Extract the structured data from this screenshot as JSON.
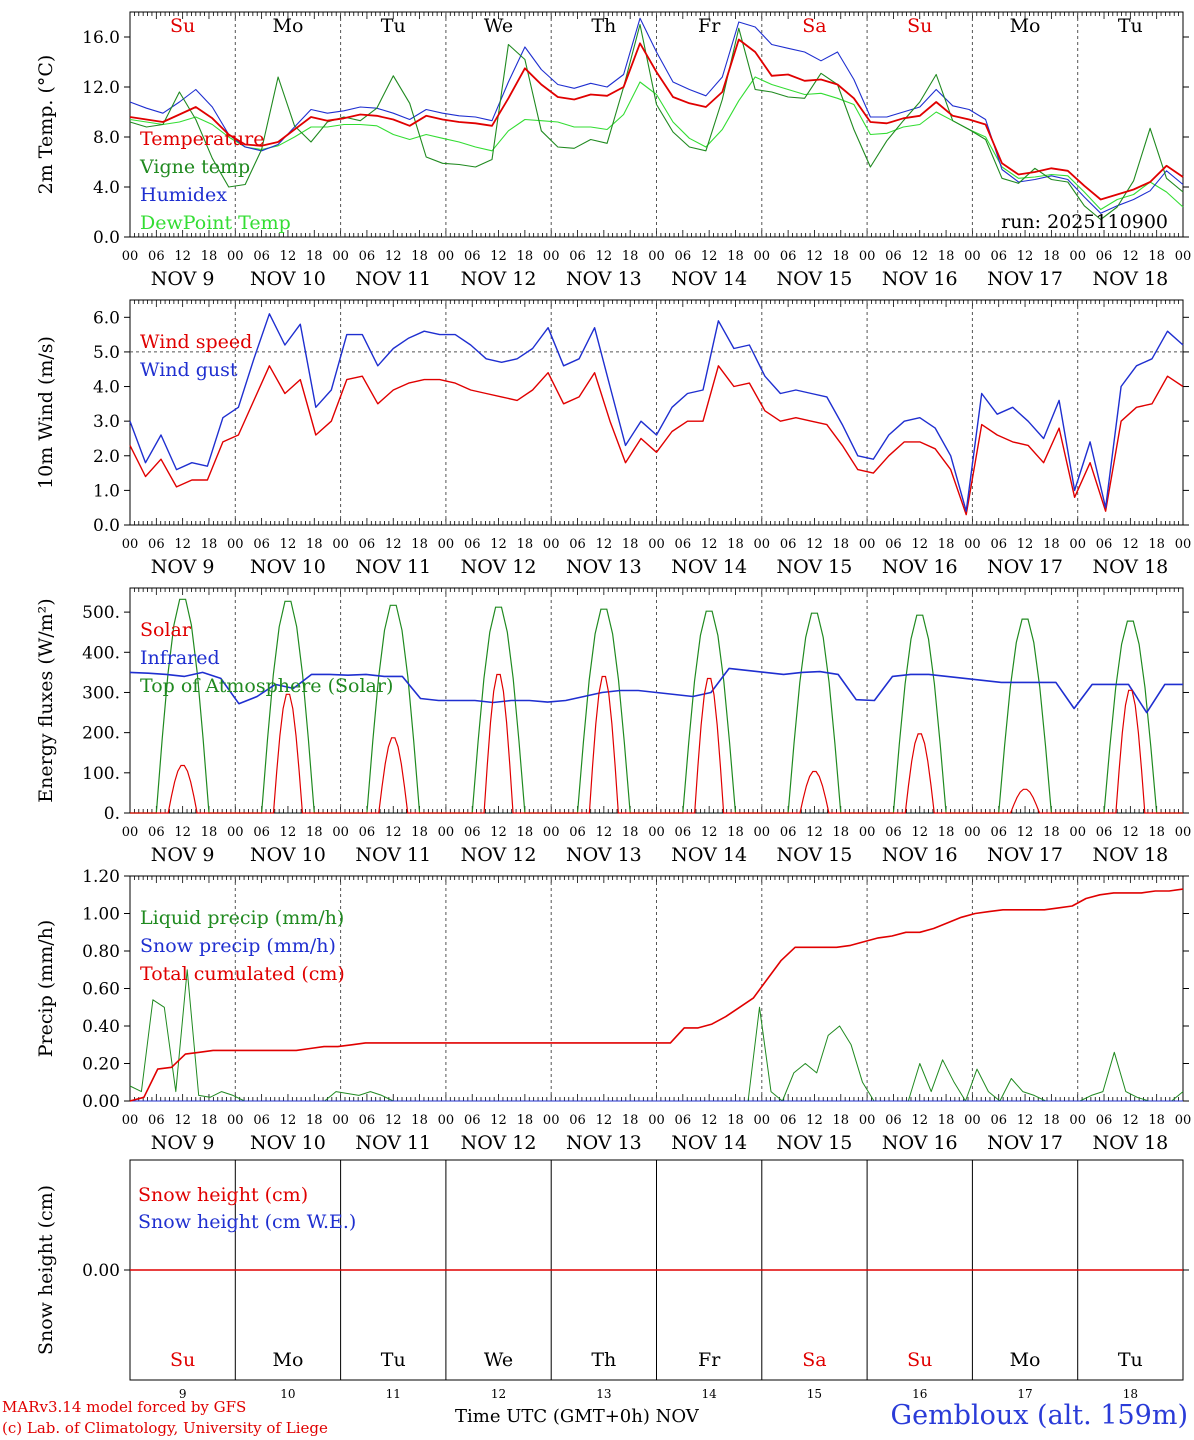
{
  "chart_data": [
    {
      "type": "line",
      "ylabel": "2m Temp. (°C)",
      "ylim": [
        0,
        18
      ],
      "yticks": [
        "0.0",
        "4.0",
        "8.0",
        "12.0",
        "16.0"
      ],
      "annotation": "run: 2025110900",
      "series": [
        {
          "name": "Temperature",
          "color": "#e00000",
          "values": [
            9.6,
            9.4,
            9.2,
            9.8,
            10.4,
            9.5,
            8.2,
            7.4,
            7.3,
            7.6,
            8.6,
            9.6,
            9.3,
            9.5,
            9.8,
            9.7,
            9.4,
            8.9,
            9.7,
            9.4,
            9.2,
            9.1,
            8.9,
            11.1,
            13.5,
            12.2,
            11.2,
            11.0,
            11.4,
            11.3,
            12.0,
            15.5,
            13.2,
            11.2,
            10.7,
            10.4,
            11.6,
            15.8,
            14.8,
            12.9,
            13.0,
            12.5,
            12.6,
            12.2,
            11.1,
            9.2,
            9.1,
            9.5,
            9.7,
            10.8,
            9.7,
            9.4,
            9.0,
            5.9,
            5.0,
            5.2,
            5.5,
            5.3,
            4.1,
            3.0,
            3.4,
            3.8,
            4.4,
            5.7,
            4.8
          ]
        },
        {
          "name": "Vigne temp",
          "color": "#208a20",
          "values": [
            9.2,
            8.8,
            9.0,
            11.6,
            9.4,
            6.3,
            4.0,
            4.2,
            7.0,
            12.8,
            8.9,
            7.6,
            9.2,
            9.6,
            9.3,
            10.3,
            12.9,
            10.7,
            6.4,
            5.9,
            5.8,
            5.6,
            6.2,
            15.4,
            14.2,
            8.5,
            7.2,
            7.1,
            7.8,
            7.5,
            12.0,
            17.0,
            10.6,
            8.4,
            7.2,
            6.9,
            11.0,
            16.7,
            11.8,
            11.6,
            11.2,
            11.1,
            13.1,
            12.2,
            8.6,
            5.6,
            7.7,
            9.3,
            10.8,
            13.0,
            9.3,
            8.6,
            7.8,
            4.7,
            4.3,
            5.5,
            4.6,
            4.4,
            2.5,
            1.4,
            2.4,
            4.5,
            8.7,
            4.7,
            3.6
          ]
        },
        {
          "name": "Humidex",
          "color": "#1f2fd0",
          "values": [
            10.8,
            10.3,
            9.9,
            10.8,
            11.8,
            10.4,
            8.2,
            7.2,
            6.9,
            7.4,
            8.8,
            10.2,
            9.9,
            10.1,
            10.4,
            10.3,
            9.9,
            9.4,
            10.2,
            9.9,
            9.7,
            9.6,
            9.3,
            12.4,
            15.2,
            13.4,
            12.2,
            11.9,
            12.3,
            12.0,
            13.0,
            17.5,
            14.8,
            12.4,
            11.8,
            11.3,
            12.8,
            17.2,
            16.8,
            15.4,
            15.1,
            14.8,
            14.1,
            14.8,
            12.6,
            9.6,
            9.6,
            10.0,
            10.4,
            11.8,
            10.5,
            10.2,
            9.4,
            5.4,
            4.4,
            4.6,
            4.9,
            4.6,
            3.2,
            1.9,
            2.5,
            3.0,
            3.7,
            5.3,
            4.2
          ]
        },
        {
          "name": "DewPoint Temp",
          "color": "#33dd33",
          "values": [
            9.4,
            9.2,
            9.0,
            9.2,
            9.6,
            9.0,
            8.0,
            7.2,
            7.0,
            7.3,
            8.0,
            8.8,
            8.8,
            9.0,
            9.0,
            8.9,
            8.2,
            7.8,
            8.2,
            7.9,
            7.6,
            7.2,
            6.9,
            8.5,
            9.4,
            9.3,
            9.2,
            8.8,
            8.8,
            8.6,
            9.8,
            12.4,
            11.4,
            9.2,
            7.9,
            7.2,
            8.6,
            10.9,
            12.8,
            12.2,
            11.8,
            11.4,
            11.5,
            11.1,
            10.6,
            8.2,
            8.3,
            8.8,
            9.0,
            10.0,
            9.3,
            8.6,
            8.0,
            5.6,
            4.7,
            4.8,
            5.0,
            4.9,
            3.6,
            2.2,
            3.0,
            3.4,
            4.4,
            3.6,
            2.4
          ]
        }
      ]
    },
    {
      "type": "line",
      "ylabel": "10m Wind (m/s)",
      "ylim": [
        0,
        6.5
      ],
      "yticks": [
        "0.0",
        "1.0",
        "2.0",
        "3.0",
        "4.0",
        "5.0",
        "6.0"
      ],
      "reference_line": 5.0,
      "series": [
        {
          "name": "Wind speed",
          "color": "#e00000",
          "values": [
            2.3,
            1.4,
            1.9,
            1.1,
            1.3,
            1.3,
            2.4,
            2.6,
            3.6,
            4.6,
            3.8,
            4.2,
            2.6,
            3.0,
            4.2,
            4.3,
            3.5,
            3.9,
            4.1,
            4.2,
            4.2,
            4.1,
            3.9,
            3.8,
            3.7,
            3.6,
            3.9,
            4.4,
            3.5,
            3.7,
            4.4,
            3.0,
            1.8,
            2.5,
            2.1,
            2.7,
            3.0,
            3.0,
            4.6,
            4.0,
            4.1,
            3.3,
            3.0,
            3.1,
            3.0,
            2.9,
            2.3,
            1.6,
            1.5,
            2.0,
            2.4,
            2.4,
            2.2,
            1.6,
            0.3,
            2.9,
            2.6,
            2.4,
            2.3,
            1.8,
            2.8,
            0.8,
            1.8,
            0.4,
            3.0,
            3.4,
            3.5,
            4.3,
            4.0
          ]
        },
        {
          "name": "Wind gust",
          "color": "#1f2fd0",
          "values": [
            3.0,
            1.8,
            2.6,
            1.6,
            1.8,
            1.7,
            3.1,
            3.4,
            4.8,
            6.1,
            5.2,
            5.8,
            3.4,
            3.9,
            5.5,
            5.5,
            4.6,
            5.1,
            5.4,
            5.6,
            5.5,
            5.5,
            5.2,
            4.8,
            4.7,
            4.8,
            5.1,
            5.7,
            4.6,
            4.8,
            5.7,
            4.0,
            2.3,
            3.0,
            2.6,
            3.4,
            3.8,
            3.9,
            5.9,
            5.1,
            5.2,
            4.3,
            3.8,
            3.9,
            3.8,
            3.7,
            2.9,
            2.0,
            1.9,
            2.6,
            3.0,
            3.1,
            2.8,
            2.0,
            0.4,
            3.8,
            3.2,
            3.4,
            3.0,
            2.5,
            3.6,
            1.0,
            2.4,
            0.5,
            4.0,
            4.6,
            4.8,
            5.6,
            5.2
          ]
        }
      ]
    },
    {
      "type": "line",
      "ylabel": "Energy fluxes (W/m²)",
      "ylim": [
        0,
        560
      ],
      "yticks": [
        "0.",
        "100.",
        "200.",
        "300.",
        "400.",
        "500."
      ],
      "series": [
        {
          "name": "Solar",
          "color": "#e00000",
          "peaks": [
            120,
            300,
            190,
            350,
            345,
            340,
            105,
            200,
            60,
            310
          ]
        },
        {
          "name": "Infrared",
          "color": "#1f2fd0",
          "values": [
            350,
            348,
            345,
            340,
            350,
            335,
            272,
            290,
            320,
            310,
            345,
            345,
            343,
            345,
            340,
            340,
            285,
            280,
            280,
            280,
            275,
            280,
            280,
            276,
            280,
            290,
            300,
            305,
            305,
            300,
            295,
            290,
            300,
            360,
            355,
            350,
            345,
            350,
            352,
            345,
            282,
            280,
            340,
            345,
            345,
            340,
            335,
            330,
            325,
            325,
            325,
            325,
            260,
            320,
            320,
            320,
            250,
            320,
            320
          ]
        },
        {
          "name": "Top of Atmosphere (Solar)",
          "color": "#208a20",
          "peaks": [
            540,
            535,
            525,
            520,
            515,
            510,
            505,
            500,
            490,
            485
          ]
        }
      ]
    },
    {
      "type": "line",
      "ylabel": "Precip (mm/h)",
      "ylim": [
        0,
        1.2
      ],
      "yticks": [
        "0.00",
        "0.20",
        "0.40",
        "0.60",
        "0.80",
        "1.00",
        "1.20"
      ],
      "series": [
        {
          "name": "Liquid precip (mm/h)",
          "color": "#208a20",
          "values": [
            0.08,
            0.05,
            0.54,
            0.5,
            0.05,
            0.7,
            0.03,
            0.02,
            0.05,
            0.03,
            0.0,
            0.0,
            0.0,
            0.0,
            0.0,
            0.0,
            0.0,
            0.0,
            0.05,
            0.04,
            0.03,
            0.05,
            0.03,
            0.0,
            0.0,
            0.0,
            0.0,
            0.0,
            0.0,
            0.0,
            0.0,
            0.0,
            0.0,
            0.0,
            0.0,
            0.0,
            0.0,
            0.0,
            0.0,
            0.0,
            0.0,
            0.0,
            0.0,
            0.0,
            0.0,
            0.0,
            0.0,
            0.0,
            0.0,
            0.0,
            0.0,
            0.0,
            0.0,
            0.0,
            0.0,
            0.5,
            0.05,
            0.0,
            0.15,
            0.2,
            0.15,
            0.35,
            0.4,
            0.3,
            0.1,
            0.0,
            0.0,
            0.0,
            0.0,
            0.2,
            0.05,
            0.22,
            0.1,
            0.0,
            0.17,
            0.05,
            0.0,
            0.12,
            0.05,
            0.03,
            0.0,
            0.0,
            0.0,
            0.0,
            0.03,
            0.05,
            0.26,
            0.05,
            0.02,
            0.0,
            0.0,
            0.0,
            0.05
          ]
        },
        {
          "name": "Snow precip (mm/h)",
          "color": "#1f2fd0",
          "values": [
            0.0,
            0.0
          ]
        },
        {
          "name": "Total cumulated (cm)",
          "color": "#e00000",
          "values": [
            0.0,
            0.02,
            0.17,
            0.18,
            0.25,
            0.26,
            0.27,
            0.27,
            0.27,
            0.27,
            0.27,
            0.27,
            0.27,
            0.28,
            0.29,
            0.29,
            0.3,
            0.31,
            0.31,
            0.31,
            0.31,
            0.31,
            0.31,
            0.31,
            0.31,
            0.31,
            0.31,
            0.31,
            0.31,
            0.31,
            0.31,
            0.31,
            0.31,
            0.31,
            0.31,
            0.31,
            0.31,
            0.31,
            0.31,
            0.31,
            0.39,
            0.39,
            0.41,
            0.45,
            0.5,
            0.55,
            0.65,
            0.75,
            0.82,
            0.82,
            0.82,
            0.82,
            0.83,
            0.85,
            0.87,
            0.88,
            0.9,
            0.9,
            0.92,
            0.95,
            0.98,
            1.0,
            1.01,
            1.02,
            1.02,
            1.02,
            1.02,
            1.03,
            1.04,
            1.08,
            1.1,
            1.11,
            1.11,
            1.11,
            1.12,
            1.12,
            1.13
          ]
        }
      ]
    },
    {
      "type": "line",
      "ylabel": "Snow height (cm)",
      "ylim": [
        -1,
        1
      ],
      "yticks": [
        "0.00"
      ],
      "series": [
        {
          "name": "Snow height (cm)",
          "color": "#e00000",
          "values": [
            0,
            0
          ]
        },
        {
          "name": "Snow height (cm W.E.)",
          "color": "#1f2fd0",
          "values": []
        }
      ]
    }
  ],
  "axis": {
    "day_abbrev": [
      "Su",
      "Mo",
      "Tu",
      "We",
      "Th",
      "Fr",
      "Sa",
      "Su",
      "Mo",
      "Tu"
    ],
    "weekend_flags": [
      true,
      false,
      false,
      false,
      false,
      false,
      true,
      true,
      false,
      false
    ],
    "hours": [
      "00",
      "06",
      "12",
      "18"
    ],
    "end_hour": "00",
    "dates": [
      "NOV   9",
      "NOV 10",
      "NOV 11",
      "NOV 12",
      "NOV 13",
      "NOV 14",
      "NOV 15",
      "NOV 16",
      "NOV 17",
      "NOV 18"
    ],
    "day_numbers": [
      "9",
      "10",
      "11",
      "12",
      "13",
      "14",
      "15",
      "16",
      "17",
      "18"
    ]
  },
  "colors": {
    "weekend": "#e00000",
    "weekday": "#000000",
    "grid": "#555555"
  },
  "footer": {
    "model_line": "MARv3.14 model forced by GFS",
    "lab_line": "(c) Lab. of Climatology, University of Liege",
    "time_label": "Time UTC (GMT+0h)",
    "month_label": "NOV",
    "station": "Gembloux (alt. 159m)"
  }
}
